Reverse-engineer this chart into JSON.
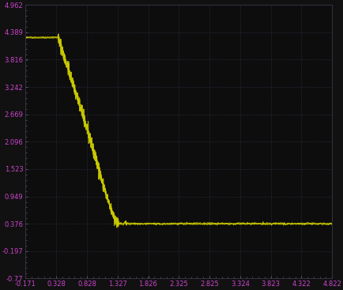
{
  "background_color": "#111111",
  "plot_bg_color": "#0d0d0d",
  "grid_color": "#2a2a40",
  "line_color": "#cccc00",
  "line_width": 0.8,
  "xlim": [
    -0.171,
    4.822
  ],
  "ylim": [
    -0.77,
    4.962
  ],
  "xticks": [
    -0.171,
    0.328,
    0.828,
    1.327,
    1.826,
    2.325,
    2.825,
    3.324,
    3.823,
    4.322,
    4.822
  ],
  "yticks": [
    -0.77,
    -0.197,
    0.376,
    0.949,
    1.523,
    2.096,
    2.669,
    3.242,
    3.816,
    4.389,
    4.962
  ],
  "tick_label_color": "#cc44cc",
  "tick_fontsize": 6.0,
  "high_val": 4.28,
  "low_val": 0.378,
  "transition_start_x": 0.36,
  "transition_end_x": 1.34,
  "noise_seed": 42
}
